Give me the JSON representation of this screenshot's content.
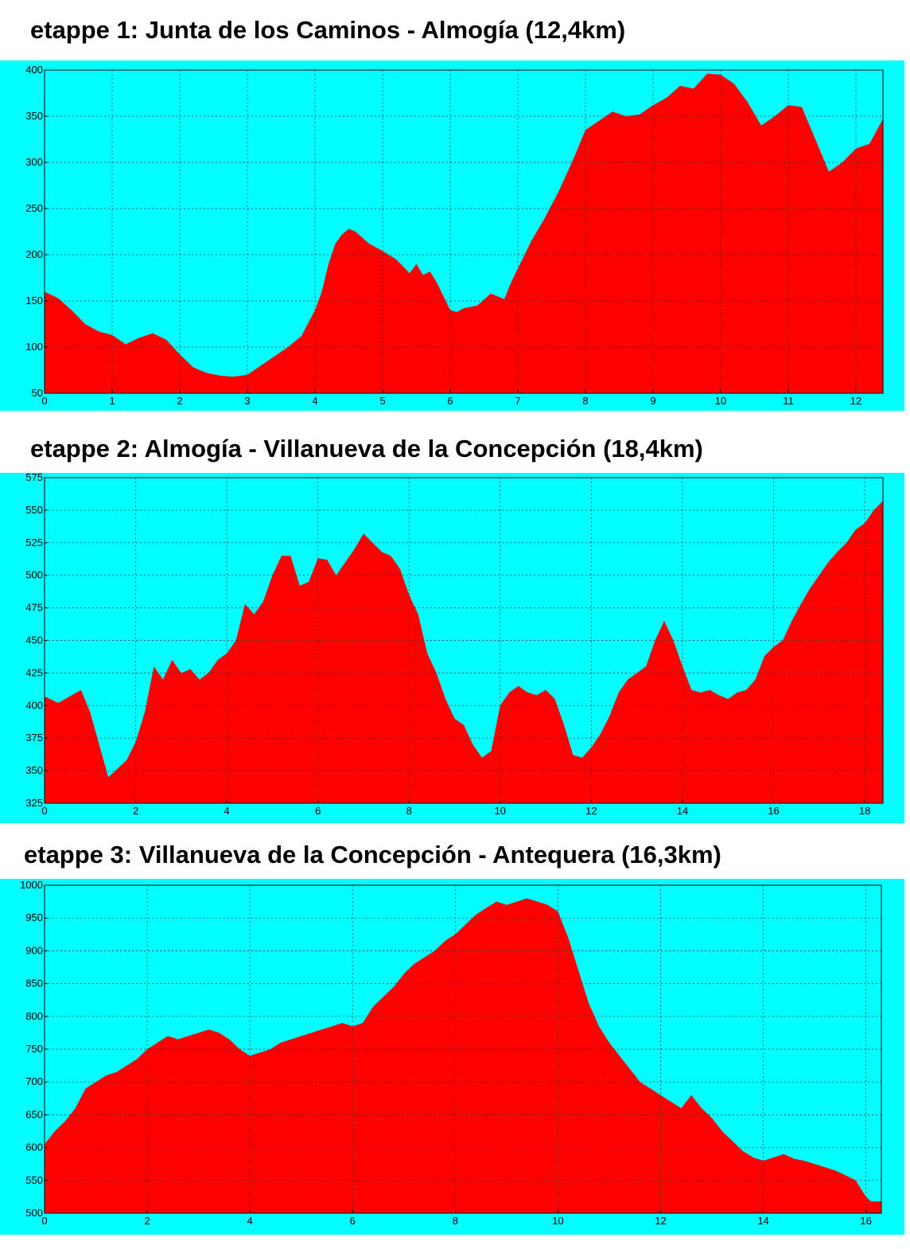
{
  "chart_data": [
    {
      "type": "area",
      "title": "etappe 1: Junta de los Caminos - Almogía (12,4km)",
      "xlabel": "",
      "ylabel": "",
      "xlim": [
        0,
        12.4
      ],
      "ylim": [
        50,
        400
      ],
      "xticks": [
        0,
        1,
        2,
        3,
        4,
        5,
        6,
        7,
        8,
        9,
        10,
        11,
        12
      ],
      "yticks": [
        50,
        100,
        150,
        200,
        250,
        300,
        350,
        400
      ],
      "grid": true,
      "fill_color": "#ff0000",
      "background_color": "#00ffff",
      "x": [
        0,
        0.2,
        0.4,
        0.6,
        0.8,
        1.0,
        1.2,
        1.4,
        1.6,
        1.8,
        2.0,
        2.2,
        2.4,
        2.6,
        2.8,
        3.0,
        3.2,
        3.4,
        3.6,
        3.8,
        4.0,
        4.1,
        4.2,
        4.3,
        4.4,
        4.5,
        4.6,
        4.8,
        5.0,
        5.2,
        5.4,
        5.5,
        5.6,
        5.7,
        5.8,
        6.0,
        6.1,
        6.2,
        6.4,
        6.6,
        6.8,
        6.9,
        7.0,
        7.2,
        7.4,
        7.6,
        7.8,
        8.0,
        8.2,
        8.4,
        8.6,
        8.8,
        9.0,
        9.2,
        9.4,
        9.6,
        9.8,
        10.0,
        10.2,
        10.4,
        10.6,
        10.8,
        11.0,
        11.2,
        11.4,
        11.6,
        11.8,
        12.0,
        12.2,
        12.4
      ],
      "y": [
        160,
        153,
        140,
        125,
        117,
        113,
        103,
        110,
        115,
        108,
        92,
        78,
        72,
        69,
        68,
        70,
        80,
        90,
        100,
        112,
        140,
        160,
        190,
        212,
        222,
        228,
        225,
        212,
        204,
        195,
        180,
        190,
        178,
        182,
        170,
        140,
        138,
        142,
        145,
        158,
        152,
        170,
        185,
        215,
        240,
        268,
        300,
        335,
        345,
        355,
        350,
        352,
        362,
        370,
        383,
        380,
        396,
        395,
        385,
        365,
        340,
        350,
        362,
        360,
        325,
        290,
        300,
        315,
        320,
        347
      ]
    },
    {
      "type": "area",
      "title": "etappe 2: Almogía - Villanueva de la Concepción (18,4km)",
      "xlabel": "",
      "ylabel": "",
      "xlim": [
        0,
        18.4
      ],
      "ylim": [
        325,
        575
      ],
      "xticks": [
        0,
        2,
        4,
        6,
        8,
        10,
        12,
        14,
        16,
        18
      ],
      "yticks": [
        325,
        350,
        375,
        400,
        425,
        450,
        475,
        500,
        525,
        550,
        575
      ],
      "grid": true,
      "fill_color": "#ff0000",
      "background_color": "#00ffff",
      "x": [
        0,
        0.3,
        0.6,
        0.8,
        1.0,
        1.2,
        1.4,
        1.8,
        2.0,
        2.2,
        2.4,
        2.6,
        2.8,
        3.0,
        3.2,
        3.4,
        3.6,
        3.8,
        4.0,
        4.2,
        4.4,
        4.6,
        4.8,
        5.0,
        5.2,
        5.4,
        5.6,
        5.8,
        6.0,
        6.2,
        6.4,
        6.6,
        6.8,
        7.0,
        7.2,
        7.4,
        7.6,
        7.8,
        8.0,
        8.2,
        8.4,
        8.6,
        8.8,
        9.0,
        9.2,
        9.4,
        9.6,
        9.8,
        10.0,
        10.2,
        10.4,
        10.6,
        10.8,
        11.0,
        11.2,
        11.4,
        11.6,
        11.8,
        12.0,
        12.2,
        12.4,
        12.6,
        12.8,
        13.0,
        13.2,
        13.4,
        13.6,
        13.8,
        14.0,
        14.2,
        14.4,
        14.6,
        14.8,
        15.0,
        15.2,
        15.4,
        15.6,
        15.8,
        16.0,
        16.2,
        16.4,
        16.6,
        16.8,
        17.0,
        17.2,
        17.4,
        17.6,
        17.8,
        18.0,
        18.2,
        18.4
      ],
      "y": [
        407,
        402,
        408,
        412,
        395,
        370,
        345,
        358,
        372,
        395,
        430,
        420,
        435,
        425,
        428,
        420,
        425,
        435,
        440,
        450,
        478,
        470,
        480,
        500,
        515,
        515,
        492,
        495,
        513,
        512,
        500,
        510,
        520,
        532,
        525,
        518,
        515,
        505,
        485,
        470,
        440,
        425,
        405,
        390,
        385,
        370,
        360,
        365,
        400,
        410,
        415,
        410,
        408,
        412,
        405,
        385,
        362,
        360,
        368,
        378,
        392,
        410,
        420,
        425,
        430,
        450,
        465,
        450,
        430,
        412,
        410,
        412,
        408,
        405,
        410,
        412,
        420,
        438,
        445,
        450,
        465,
        478,
        490,
        500,
        510,
        518,
        525,
        535,
        540,
        550,
        557
      ]
    },
    {
      "type": "area",
      "title": "etappe 3: Villanueva de la Concepción - Antequera (16,3km)",
      "xlabel": "",
      "ylabel": "",
      "xlim": [
        0,
        16.3
      ],
      "ylim": [
        500,
        1000
      ],
      "xticks": [
        0,
        2,
        4,
        6,
        8,
        10,
        12,
        14,
        16
      ],
      "yticks": [
        500,
        550,
        600,
        650,
        700,
        750,
        800,
        850,
        900,
        950,
        1000
      ],
      "grid": true,
      "fill_color": "#ff0000",
      "background_color": "#00ffff",
      "x": [
        0,
        0.2,
        0.4,
        0.6,
        0.8,
        1.0,
        1.2,
        1.4,
        1.6,
        1.8,
        2.0,
        2.2,
        2.4,
        2.6,
        2.8,
        3.0,
        3.2,
        3.4,
        3.6,
        3.8,
        4.0,
        4.2,
        4.4,
        4.6,
        4.8,
        5.0,
        5.2,
        5.4,
        5.6,
        5.8,
        6.0,
        6.2,
        6.4,
        6.6,
        6.8,
        7.0,
        7.2,
        7.4,
        7.6,
        7.8,
        8.0,
        8.2,
        8.4,
        8.6,
        8.8,
        9.0,
        9.2,
        9.4,
        9.6,
        9.8,
        10.0,
        10.2,
        10.4,
        10.6,
        10.8,
        11.0,
        11.2,
        11.4,
        11.6,
        11.8,
        12.0,
        12.2,
        12.4,
        12.6,
        12.8,
        13.0,
        13.2,
        13.4,
        13.6,
        13.8,
        14.0,
        14.2,
        14.4,
        14.6,
        14.8,
        15.0,
        15.2,
        15.4,
        15.6,
        15.8,
        16.0,
        16.1,
        16.2,
        16.3
      ],
      "y": [
        605,
        625,
        640,
        660,
        690,
        700,
        710,
        715,
        725,
        735,
        750,
        760,
        770,
        765,
        770,
        775,
        780,
        775,
        765,
        750,
        740,
        745,
        750,
        760,
        765,
        770,
        775,
        780,
        785,
        790,
        785,
        790,
        815,
        830,
        845,
        865,
        880,
        890,
        900,
        915,
        925,
        940,
        955,
        965,
        975,
        970,
        975,
        980,
        975,
        970,
        960,
        920,
        870,
        820,
        785,
        760,
        740,
        720,
        700,
        690,
        680,
        670,
        660,
        680,
        660,
        645,
        625,
        610,
        595,
        585,
        580,
        585,
        590,
        583,
        580,
        575,
        570,
        565,
        558,
        550,
        525,
        518,
        518,
        518
      ]
    }
  ]
}
